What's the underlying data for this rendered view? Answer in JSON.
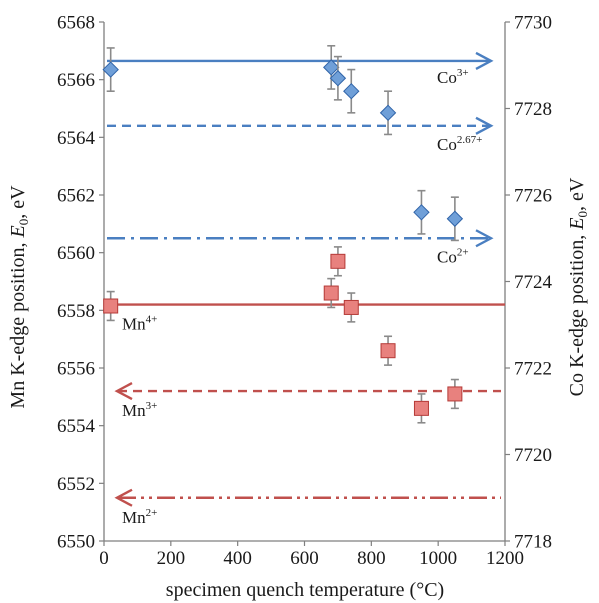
{
  "chart_data": {
    "type": "scatter",
    "xlabel": "specimen quench temperature (°C)",
    "ylabel_left": {
      "prefix": "Mn K-edge position, ",
      "italic": "E",
      "sub": "0",
      "suffix": ", eV"
    },
    "ylabel_right": {
      "prefix": "Co K-edge position, ",
      "italic": "E",
      "sub": "0",
      "suffix": ", eV"
    },
    "xlim": [
      0,
      1200
    ],
    "ylim_left": [
      6550,
      6568
    ],
    "ylim_right": [
      7718,
      7730
    ],
    "x_ticks": [
      0,
      200,
      400,
      600,
      800,
      1000,
      1200
    ],
    "y_left_ticks": [
      6550,
      6552,
      6554,
      6556,
      6558,
      6560,
      6562,
      6564,
      6566,
      6568
    ],
    "y_right_ticks": [
      7718,
      7720,
      7722,
      7724,
      7726,
      7728,
      7730
    ],
    "grid": false,
    "series": [
      {
        "axis": "right",
        "marker": "diamond",
        "color": "#6f9fd8",
        "edge_color": "#2f63a8",
        "points": [
          {
            "x": 20,
            "y": 7728.9,
            "err": 0.5
          },
          {
            "x": 680,
            "y": 7728.95,
            "err": 0.5
          },
          {
            "x": 700,
            "y": 7728.7,
            "err": 0.5
          },
          {
            "x": 740,
            "y": 7728.4,
            "err": 0.5
          },
          {
            "x": 850,
            "y": 7727.9,
            "err": 0.5
          },
          {
            "x": 950,
            "y": 7725.6,
            "err": 0.5
          },
          {
            "x": 1050,
            "y": 7725.45,
            "err": 0.5
          }
        ]
      },
      {
        "axis": "left",
        "marker": "square",
        "color": "#e8817e",
        "edge_color": "#b53a37",
        "points": [
          {
            "x": 20,
            "y": 6558.15,
            "err": 0.5
          },
          {
            "x": 680,
            "y": 6558.6,
            "err": 0.5
          },
          {
            "x": 700,
            "y": 6559.7,
            "err": 0.5
          },
          {
            "x": 740,
            "y": 6558.1,
            "err": 0.5
          },
          {
            "x": 850,
            "y": 6556.6,
            "err": 0.5
          },
          {
            "x": 950,
            "y": 6554.6,
            "err": 0.5
          },
          {
            "x": 1050,
            "y": 6555.1,
            "err": 0.5
          }
        ]
      }
    ],
    "reference_lines": [
      {
        "name": "Co3+",
        "base": "Co",
        "sup": "3+",
        "axis": "right",
        "y": 7729.1,
        "style": "solid",
        "arrow": "right",
        "color": "#4a7fc1",
        "label_anchor": "right"
      },
      {
        "name": "Co2.67+",
        "base": "Co",
        "sup": "2.67+",
        "axis": "right",
        "y": 7727.6,
        "style": "dash",
        "arrow": "right",
        "color": "#4a7fc1",
        "label_anchor": "right"
      },
      {
        "name": "Co2+",
        "base": "Co",
        "sup": "2+",
        "axis": "right",
        "y": 7725.0,
        "style": "dashdot",
        "arrow": "right",
        "color": "#4a7fc1",
        "label_anchor": "right"
      },
      {
        "name": "Mn4+",
        "base": "Mn",
        "sup": "4+",
        "axis": "left",
        "y": 6558.2,
        "style": "solid",
        "arrow": "none",
        "color": "#c0504d",
        "label_anchor": "left"
      },
      {
        "name": "Mn3+",
        "base": "Mn",
        "sup": "3+",
        "axis": "left",
        "y": 6555.2,
        "style": "dash",
        "arrow": "left",
        "color": "#c0504d",
        "label_anchor": "left"
      },
      {
        "name": "Mn2+",
        "base": "Mn",
        "sup": "2+",
        "axis": "left",
        "y": 6551.5,
        "style": "dashdotdot",
        "arrow": "left",
        "color": "#c0504d",
        "label_anchor": "left"
      }
    ]
  }
}
